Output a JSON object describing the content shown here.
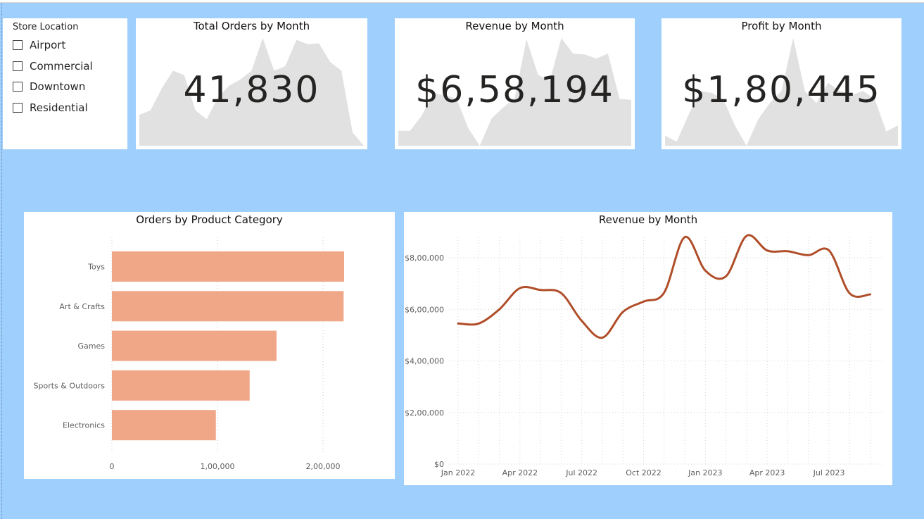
{
  "slicer": {
    "title": "Store Location",
    "items": [
      {
        "label": "Airport",
        "checked": false
      },
      {
        "label": "Commercial",
        "checked": false
      },
      {
        "label": "Downtown",
        "checked": false
      },
      {
        "label": "Residential",
        "checked": false
      }
    ]
  },
  "kpis": [
    {
      "title": "Total Orders by Month",
      "value": "41,830"
    },
    {
      "title": "Revenue by Month",
      "value": "$6,58,194"
    },
    {
      "title": "Profit by Month",
      "value": "$1,80,445"
    }
  ],
  "colors": {
    "background": "#9fcffd",
    "bar": "#f0a788",
    "line": "#b04e2a",
    "sparkline_area": "#e1e1e1"
  },
  "chart_data": [
    {
      "type": "bar",
      "orientation": "horizontal",
      "title": "Orders by Product Category",
      "categories": [
        "Toys",
        "Art & Crafts",
        "Games",
        "Sports & Outdoors",
        "Electronics"
      ],
      "values": [
        220000,
        219500,
        156000,
        130500,
        98500
      ],
      "xlim": [
        0,
        240000
      ],
      "xticks": [
        {
          "value": 0,
          "label": "0"
        },
        {
          "value": 100000,
          "label": "1,00,000"
        },
        {
          "value": 200000,
          "label": "2,00,000"
        }
      ],
      "grid": true
    },
    {
      "type": "line",
      "title": "Revenue by Month",
      "x": [
        "2022-01",
        "2022-02",
        "2022-03",
        "2022-04",
        "2022-05",
        "2022-06",
        "2022-07",
        "2022-08",
        "2022-09",
        "2022-10",
        "2022-11",
        "2022-12",
        "2023-01",
        "2023-02",
        "2023-03",
        "2023-04",
        "2023-05",
        "2023-06",
        "2023-07",
        "2023-08",
        "2023-09"
      ],
      "values": [
        545000,
        545000,
        600000,
        682000,
        675000,
        663000,
        555000,
        490000,
        590000,
        630000,
        665000,
        880000,
        750000,
        728000,
        885000,
        828000,
        825000,
        810000,
        828000,
        662000,
        658000
      ],
      "ylim": [
        0,
        900000
      ],
      "yticks": [
        {
          "value": 0,
          "label": "$0"
        },
        {
          "value": 200000,
          "label": "$2,00,000"
        },
        {
          "value": 400000,
          "label": "$4,00,000"
        },
        {
          "value": 600000,
          "label": "$6,00,000"
        },
        {
          "value": 800000,
          "label": "$8,00,000"
        }
      ],
      "xticks": [
        {
          "index": 0,
          "label": "Jan 2022"
        },
        {
          "index": 3,
          "label": "Apr 2022"
        },
        {
          "index": 6,
          "label": "Jul 2022"
        },
        {
          "index": 9,
          "label": "Oct 2022"
        },
        {
          "index": 12,
          "label": "Jan 2023"
        },
        {
          "index": 15,
          "label": "Apr 2023"
        },
        {
          "index": 18,
          "label": "Jul 2023"
        }
      ],
      "grid": true
    },
    {
      "type": "area",
      "title": "Total Orders by Month",
      "values": [
        3450,
        3500,
        3750,
        3950,
        3900,
        3500,
        3400,
        3650,
        3780,
        3850,
        3950,
        4320,
        3950,
        4000,
        4300,
        4250,
        4260,
        4050,
        3950,
        3250,
        3100
      ]
    },
    {
      "type": "area",
      "title": "Revenue by Month",
      "values": [
        545000,
        545000,
        600000,
        682000,
        675000,
        663000,
        555000,
        490000,
        590000,
        630000,
        665000,
        880000,
        750000,
        728000,
        885000,
        828000,
        825000,
        810000,
        828000,
        662000,
        658000
      ]
    },
    {
      "type": "area",
      "title": "Profit by Month",
      "values": [
        150000,
        147000,
        160000,
        172000,
        171000,
        168000,
        155000,
        145000,
        158000,
        166000,
        172000,
        198000,
        172000,
        166000,
        176000,
        172000,
        170000,
        172000,
        168000,
        152000,
        155000
      ]
    }
  ]
}
